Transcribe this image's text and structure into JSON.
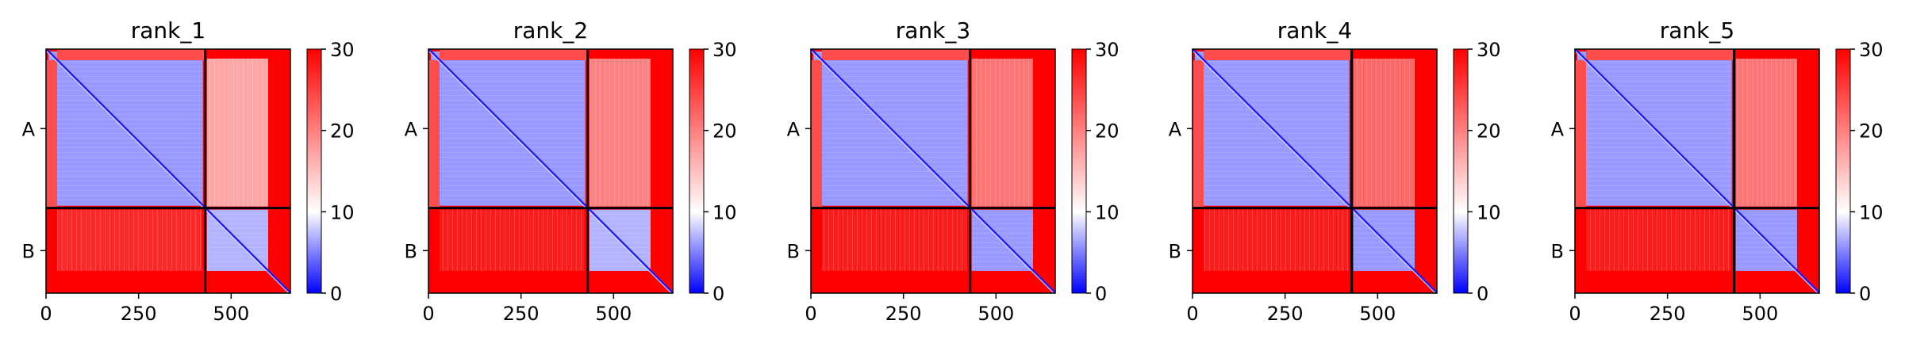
{
  "chart_data": {
    "type": "heatmap",
    "description_kind": "predicted aligned error matrices, one per model rank",
    "colormap": {
      "min_color": "#0000ff",
      "mid_color": "#ffffff",
      "max_color": "#ff0000"
    },
    "color_range": [
      0,
      30
    ],
    "colorbar_ticks": [
      "0",
      "10",
      "20",
      "30"
    ],
    "x_ticks": [
      0,
      250,
      500
    ],
    "x_range": [
      0,
      660
    ],
    "chain_boundary": 430,
    "chains": [
      {
        "label": "A",
        "start": 0,
        "end": 430
      },
      {
        "label": "B",
        "start": 430,
        "end": 660
      }
    ],
    "panels": [
      {
        "title": "rank_1",
        "blocks": {
          "AA": 6,
          "AB": 17,
          "BA": 27,
          "BB": 7
        }
      },
      {
        "title": "rank_2",
        "blocks": {
          "AA": 6,
          "AB": 20,
          "BA": 28,
          "BB": 7
        }
      },
      {
        "title": "rank_3",
        "blocks": {
          "AA": 6,
          "AB": 21,
          "BA": 28,
          "BB": 6
        }
      },
      {
        "title": "rank_4",
        "blocks": {
          "AA": 6,
          "AB": 22,
          "BA": 28,
          "BB": 6
        }
      },
      {
        "title": "rank_5",
        "blocks": {
          "AA": 6,
          "AB": 21,
          "BA": 28,
          "BB": 6
        }
      }
    ]
  }
}
